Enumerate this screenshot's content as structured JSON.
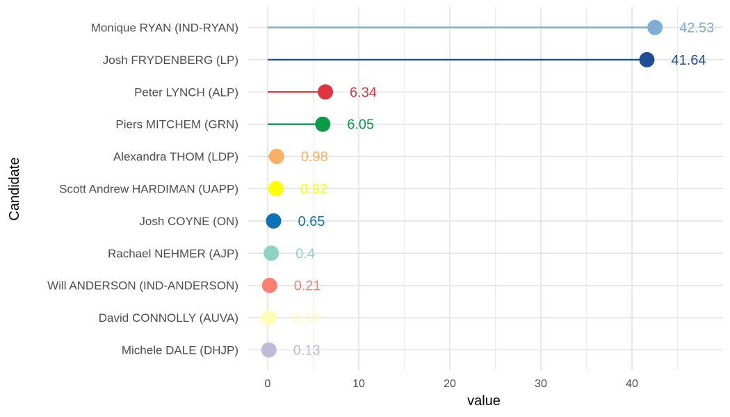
{
  "chart_data": {
    "type": "lollipop",
    "xlabel": "value",
    "ylabel": "Candidate",
    "xlim": [
      0,
      50
    ],
    "x_ticks": [
      0,
      10,
      20,
      30,
      40
    ],
    "grid": true,
    "legend": "none",
    "categories": [
      "Monique RYAN (IND-RYAN)",
      "Josh FRYDENBERG (LP)",
      "Peter LYNCH (ALP)",
      "Piers MITCHEM (GRN)",
      "Alexandra THOM (LDP)",
      "Scott Andrew HARDIMAN (UAPP)",
      "Josh COYNE (ON)",
      "Rachael NEHMER (AJP)",
      "Will ANDERSON (IND-ANDERSON)",
      "David CONNOLLY (AUVA)",
      "Michele DALE (DHJP)"
    ],
    "values": [
      42.53,
      41.64,
      6.34,
      6.05,
      0.98,
      0.92,
      0.65,
      0.4,
      0.21,
      0.14,
      0.13
    ],
    "labels": [
      "42.53",
      "41.64",
      "6.34",
      "6.05",
      "0.98",
      "0.92",
      "0.65",
      "0.4",
      "0.21",
      "0.14",
      "0.13"
    ],
    "colors": [
      "#7fadd4",
      "#1f4e96",
      "#e0343f",
      "#0b9a45",
      "#fbb065",
      "#ffff00",
      "#0e72b8",
      "#8fd3c7",
      "#fb8072",
      "#ffffb3",
      "#bebada"
    ]
  }
}
